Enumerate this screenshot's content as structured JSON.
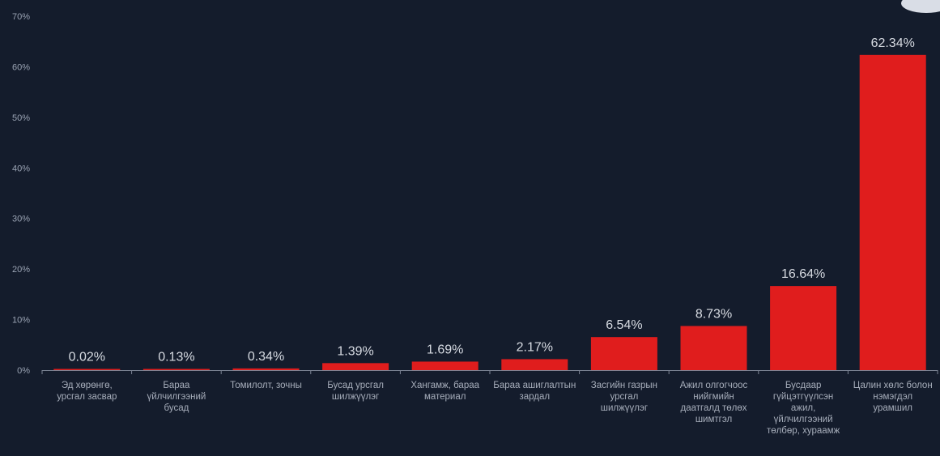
{
  "chart_data": {
    "type": "bar",
    "title": "",
    "xlabel": "",
    "ylabel": "",
    "ylim": [
      0,
      70
    ],
    "yticks": [
      0,
      10,
      20,
      30,
      40,
      50,
      60,
      70
    ],
    "ytick_labels": [
      "0%",
      "10%",
      "20%",
      "30%",
      "40%",
      "50%",
      "60%",
      "70%"
    ],
    "grid": false,
    "categories": [
      [
        "Эд хөрөнгө,",
        "урсгал засвар"
      ],
      [
        "Бараа",
        "үйлчилгээний",
        "бусад"
      ],
      [
        "Томилолт, зочны"
      ],
      [
        "Бусад урсгал",
        "шилжүүлэг"
      ],
      [
        "Хангамж, бараа",
        "материал"
      ],
      [
        "Бараа ашиглалтын",
        "зардал"
      ],
      [
        "Засгийн газрын",
        "урсгал",
        "шилжүүлэг"
      ],
      [
        "Ажил олгогчоос",
        "нийгмийн",
        "даатгалд төлөх",
        "шимтгэл"
      ],
      [
        "Бусдаар",
        "гүйцэтгүүлсэн",
        "ажил,",
        "үйлчилгээний",
        "төлбөр, хураамж"
      ],
      [
        "Цалин хөлс болон",
        "нэмэгдэл",
        "урамшил"
      ]
    ],
    "values": [
      0.02,
      0.13,
      0.34,
      1.39,
      1.69,
      2.17,
      6.54,
      8.73,
      16.64,
      62.34
    ],
    "value_labels": [
      "0.02%",
      "0.13%",
      "0.34%",
      "1.39%",
      "1.69%",
      "2.17%",
      "6.54%",
      "8.73%",
      "16.64%",
      "62.34%"
    ],
    "colors": {
      "bar": "#e01d1d",
      "background": "#141c2c",
      "axis": "#7e8696",
      "text": "#d7dbe2"
    }
  }
}
